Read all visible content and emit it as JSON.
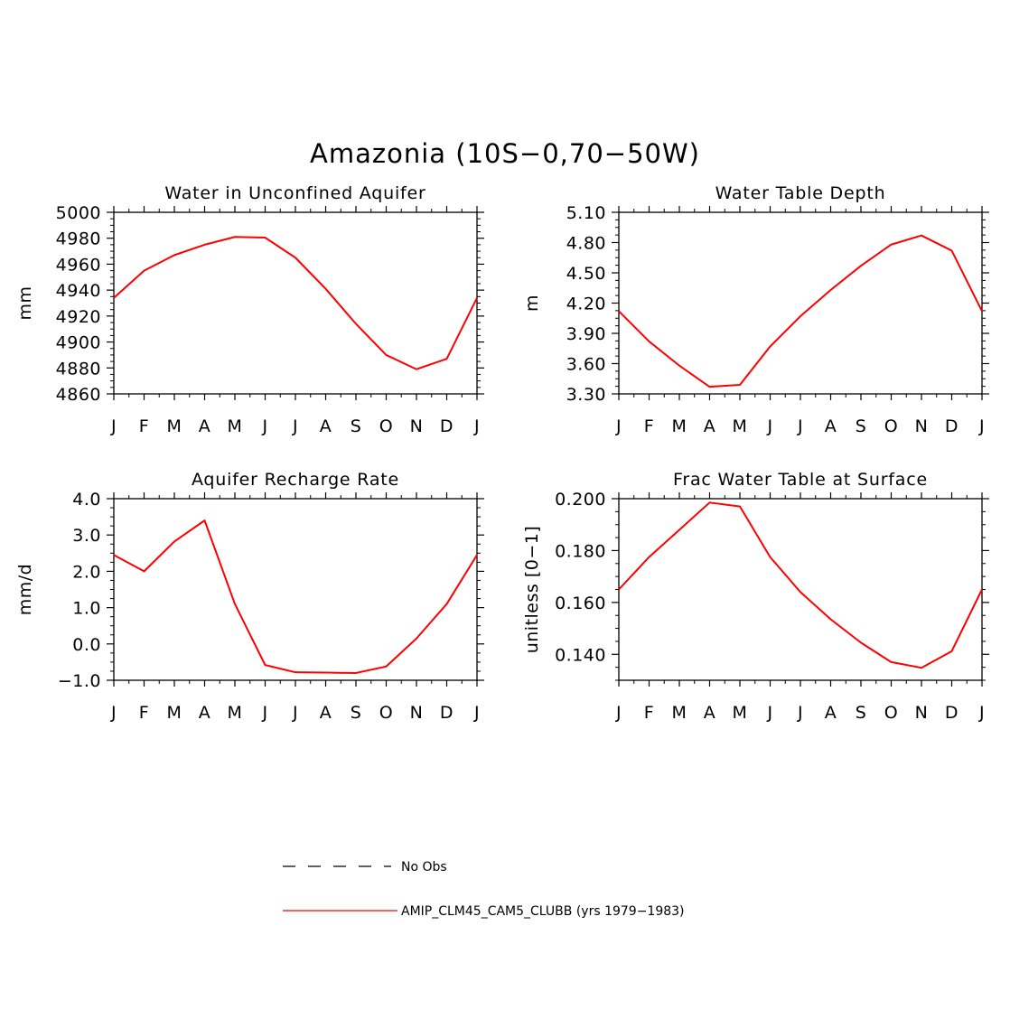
{
  "title": "Amazonia (10S-0,70-50W)",
  "months": [
    "J",
    "F",
    "M",
    "A",
    "M",
    "J",
    "J",
    "A",
    "S",
    "O",
    "N",
    "D",
    "J"
  ],
  "chart_data": [
    {
      "type": "line",
      "title": "Water in Unconfined Aquifer",
      "ylabel": "mm",
      "ylim": [
        4860,
        5000
      ],
      "yticks": [
        4860,
        4880,
        4900,
        4920,
        4940,
        4960,
        4980,
        5000
      ],
      "ytick_labels": [
        "4860",
        "4880",
        "4900",
        "4920",
        "4940",
        "4960",
        "4980",
        "5000"
      ],
      "x": [
        "J",
        "F",
        "M",
        "A",
        "M",
        "J",
        "J",
        "A",
        "S",
        "O",
        "N",
        "D",
        "J"
      ],
      "series": [
        {
          "values": [
            4934,
            4955,
            4967,
            4975,
            4981,
            4980.5,
            4965,
            4941,
            4914,
            4890,
            4879,
            4887,
            4934
          ]
        }
      ]
    },
    {
      "type": "line",
      "title": "Water Table Depth",
      "ylabel": "m",
      "ylim": [
        3.3,
        5.1
      ],
      "yticks": [
        3.3,
        3.6,
        3.9,
        4.2,
        4.5,
        4.8,
        5.1
      ],
      "ytick_labels": [
        "3.30",
        "3.60",
        "3.90",
        "4.20",
        "4.50",
        "4.80",
        "5.10"
      ],
      "x": [
        "J",
        "F",
        "M",
        "A",
        "M",
        "J",
        "J",
        "A",
        "S",
        "O",
        "N",
        "D",
        "J"
      ],
      "series": [
        {
          "values": [
            4.12,
            3.82,
            3.58,
            3.37,
            3.39,
            3.77,
            4.07,
            4.33,
            4.57,
            4.78,
            4.87,
            4.72,
            4.12
          ]
        }
      ]
    },
    {
      "type": "line",
      "title": "Aquifer Recharge Rate",
      "ylabel": "mm/d",
      "ylim": [
        -1.0,
        4.0
      ],
      "yticks": [
        -1.0,
        0.0,
        1.0,
        2.0,
        3.0,
        4.0
      ],
      "ytick_labels": [
        "-1.0",
        "0.0",
        "1.0",
        "2.0",
        "3.0",
        "4.0"
      ],
      "x": [
        "J",
        "F",
        "M",
        "A",
        "M",
        "J",
        "J",
        "A",
        "S",
        "O",
        "N",
        "D",
        "J"
      ],
      "series": [
        {
          "values": [
            2.45,
            2.0,
            2.82,
            3.4,
            1.1,
            -0.58,
            -0.78,
            -0.79,
            -0.8,
            -0.62,
            0.15,
            1.1,
            2.45
          ]
        }
      ]
    },
    {
      "type": "line",
      "title": "Frac Water Table at Surface",
      "ylabel": "unitless [0-1]",
      "ylim": [
        0.13,
        0.2
      ],
      "yticks": [
        0.14,
        0.16,
        0.18,
        0.2
      ],
      "ytick_labels": [
        "0.140",
        "0.160",
        "0.180",
        "0.200"
      ],
      "x": [
        "J",
        "F",
        "M",
        "A",
        "M",
        "J",
        "J",
        "A",
        "S",
        "O",
        "N",
        "D",
        "J"
      ],
      "series": [
        {
          "values": [
            0.165,
            0.1775,
            0.188,
            0.1985,
            0.197,
            0.1775,
            0.164,
            0.1535,
            0.1445,
            0.137,
            0.1348,
            0.1412,
            0.165
          ]
        }
      ]
    }
  ],
  "legend": [
    {
      "label": "No Obs",
      "color": "#000000",
      "dashed": true
    },
    {
      "label": "AMIP_CLM45_CAM5_CLUBB (yrs 1979-1983)",
      "color": "#ff0000",
      "dashed": false
    }
  ],
  "colors": {
    "line": "#ff0000",
    "axis": "#000000"
  }
}
